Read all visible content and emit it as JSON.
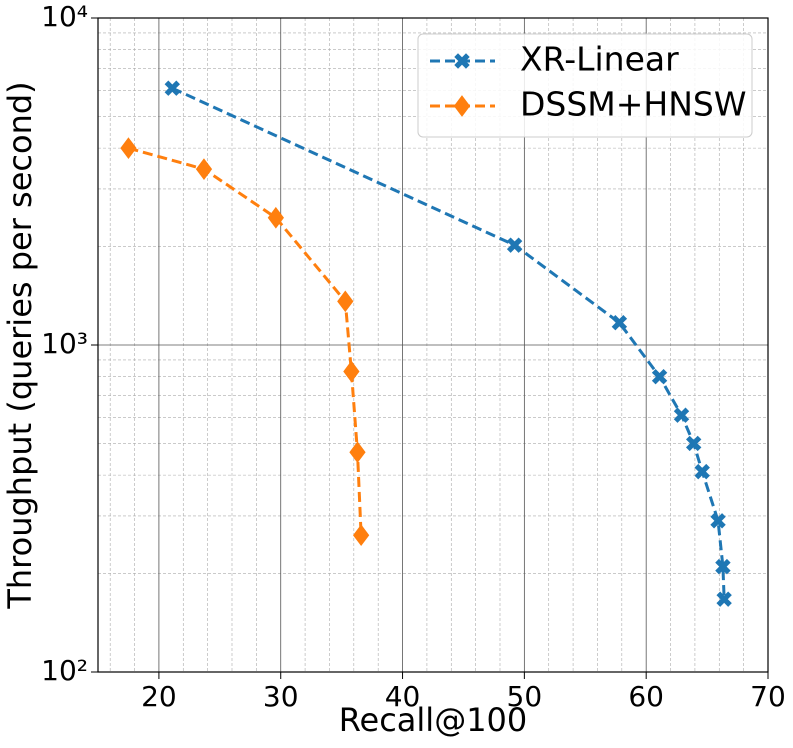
{
  "chart_data": {
    "type": "line",
    "xlabel": "Recall@100",
    "ylabel": "Throughput (queries per second)",
    "xlim": [
      15,
      70
    ],
    "xticks": [
      20,
      30,
      40,
      50,
      60,
      70
    ],
    "xminorticks": [
      16,
      18,
      22,
      24,
      26,
      28,
      32,
      34,
      36,
      38,
      42,
      44,
      46,
      48,
      52,
      54,
      56,
      58,
      62,
      64,
      66,
      68
    ],
    "ylim": [
      100,
      10000
    ],
    "yscale": "log",
    "yticks": [
      {
        "value": 100,
        "label": "10²"
      },
      {
        "value": 1000,
        "label": "10³"
      },
      {
        "value": 10000,
        "label": "10⁴"
      }
    ],
    "yminorticks": [
      200,
      300,
      400,
      500,
      600,
      700,
      800,
      900,
      2000,
      3000,
      4000,
      5000,
      6000,
      7000,
      8000,
      9000
    ],
    "grid": true,
    "legend": "upper right",
    "series": [
      {
        "name": "XR-Linear",
        "color": "#1f77b4",
        "marker": "X",
        "x": [
          21.1,
          49.2,
          57.8,
          61.1,
          62.9,
          63.9,
          64.6,
          65.9,
          66.3,
          66.4
        ],
        "values": [
          6100,
          2020,
          1170,
          800,
          610,
          500,
          410,
          290,
          210,
          167
        ]
      },
      {
        "name": "DSSM+HNSW",
        "color": "#ff7f0e",
        "marker": "D",
        "x": [
          17.5,
          23.7,
          29.6,
          35.3,
          35.8,
          36.3,
          36.6
        ],
        "values": [
          4000,
          3450,
          2450,
          1360,
          830,
          470,
          262
        ]
      }
    ]
  }
}
